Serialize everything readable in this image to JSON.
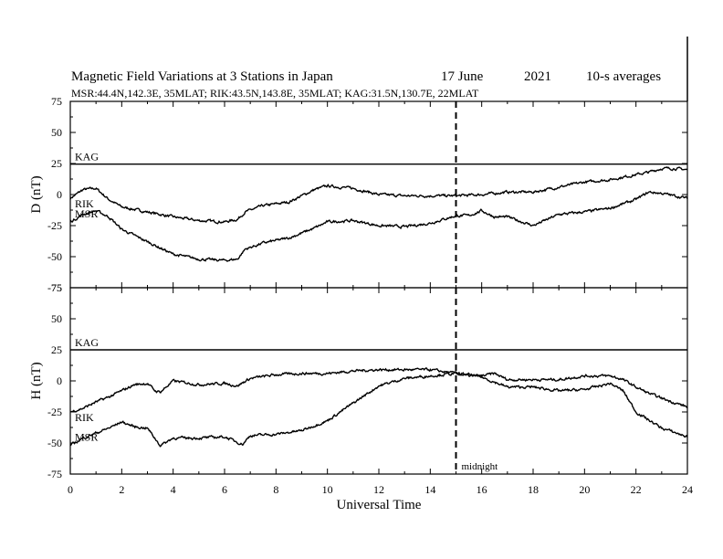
{
  "chart_data": {
    "type": "line",
    "title": "Magnetic Field Variations at 3 Stations in Japan",
    "date": "17 June",
    "year": "2021",
    "averaging": "10-s averages",
    "subtitle": "MSR:44.4N,142.3E, 35MLAT;  RIK:43.5N,143.8E, 35MLAT;  KAG:31.5N,130.7E, 22MLAT",
    "xlabel": "Universal Time",
    "xlim": [
      0,
      24
    ],
    "xticks": [
      "0",
      "2",
      "4",
      "6",
      "8",
      "10",
      "12",
      "14",
      "16",
      "18",
      "20",
      "22",
      "24"
    ],
    "grid": false,
    "legend": "none (series labelled directly on panels)",
    "line_color": "#000000",
    "annotations": [
      {
        "text": "midnight",
        "x": 15,
        "style": "dashed vertical line across both panels"
      }
    ],
    "panels": [
      {
        "ylabel": "D (nT)",
        "ylim": [
          -75,
          75
        ],
        "yticks": [
          "75",
          "50",
          "25",
          "0",
          "-25",
          "-50",
          "-75"
        ],
        "series": [
          {
            "name": "KAG",
            "x": [
              0,
              24
            ],
            "y": [
              24.5,
              24.5
            ]
          },
          {
            "name": "RIK",
            "x": [
              0,
              0.5,
              1,
              1.5,
              2,
              3,
              4,
              5,
              6,
              6.5,
              6.8,
              7.5,
              8.5,
              9.5,
              10,
              11,
              12,
              13,
              14,
              15,
              16,
              17,
              18,
              19,
              20,
              21,
              22,
              22.5,
              23,
              23.5,
              24
            ],
            "y": [
              -3,
              4,
              5,
              -4,
              -10,
              -14,
              -18,
              -21,
              -22,
              -20,
              -14,
              -9,
              -6,
              4,
              7,
              5,
              0,
              -1,
              -1,
              -1,
              0,
              2,
              2,
              6,
              10,
              12,
              16,
              18,
              21,
              21,
              20
            ]
          },
          {
            "name": "MSR",
            "x": [
              0,
              0.5,
              1,
              1.5,
              2,
              3,
              4,
              5,
              6,
              6.5,
              6.8,
              7.5,
              8.5,
              9.5,
              10,
              11,
              12,
              13,
              14,
              15,
              15.5,
              16,
              16.5,
              17,
              18,
              19,
              20,
              21,
              22,
              22.5,
              23,
              24
            ],
            "y": [
              -22,
              -16,
              -13,
              -18,
              -28,
              -38,
              -48,
              -52,
              -53,
              -52,
              -44,
              -39,
              -35,
              -27,
              -22,
              -21,
              -25,
              -26,
              -23,
              -17,
              -17,
              -13,
              -18,
              -18,
              -25,
              -16,
              -14,
              -11,
              -4,
              2,
              1,
              -3
            ]
          }
        ]
      },
      {
        "ylabel": "H (nT)",
        "ylim": [
          -75,
          75
        ],
        "yticks": [
          "75",
          "50",
          "25",
          "0",
          "-25",
          "-50",
          "-75"
        ],
        "series": [
          {
            "name": "KAG",
            "x": [
              0,
              24
            ],
            "y": [
              25,
              25
            ]
          },
          {
            "name": "RIK",
            "x": [
              0,
              0.5,
              1,
              1.5,
              2,
              2.5,
              3,
              3.3,
              3.5,
              4,
              5,
              6,
              6.5,
              7,
              8,
              9,
              10,
              11,
              12,
              13,
              14,
              15,
              15.5,
              16,
              16.5,
              17,
              18,
              19,
              20,
              21,
              21.5,
              22,
              22.5,
              23,
              24
            ],
            "y": [
              -25,
              -22,
              -17,
              -13,
              -8,
              -3,
              -2,
              -8,
              -9,
              0,
              -3,
              -2,
              -4,
              2,
              5,
              6,
              6,
              8,
              9,
              9,
              9,
              6,
              4,
              4,
              6,
              1,
              1,
              1,
              4,
              4,
              1,
              -5,
              -10,
              -14,
              -21
            ]
          },
          {
            "name": "MSR",
            "x": [
              0,
              0.5,
              1,
              1.5,
              2,
              2.5,
              3,
              3.5,
              4,
              5,
              6,
              6.7,
              7,
              8,
              9,
              10,
              11,
              12,
              13,
              14,
              15,
              15.5,
              16,
              16.5,
              17,
              18,
              19,
              20,
              21,
              21.5,
              22,
              23,
              24
            ],
            "y": [
              -52,
              -46,
              -42,
              -38,
              -33,
              -37,
              -38,
              -52,
              -46,
              -46,
              -45,
              -51,
              -44,
              -43,
              -40,
              -32,
              -18,
              -4,
              2,
              4,
              6,
              5,
              3,
              -1,
              -5,
              -5,
              -8,
              -7,
              -2,
              -8,
              -25,
              -38,
              -45
            ]
          }
        ]
      }
    ]
  }
}
